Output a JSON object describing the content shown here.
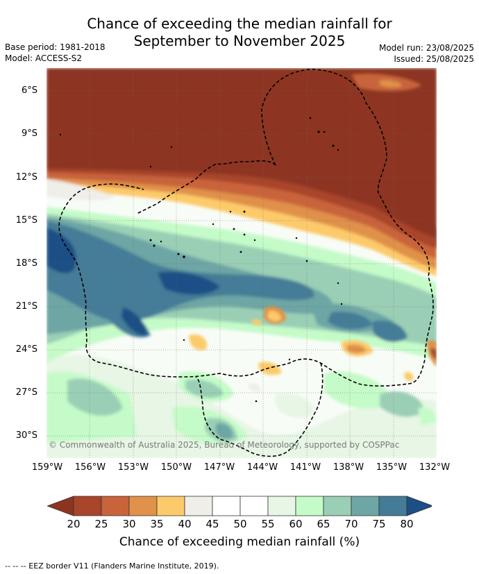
{
  "title": {
    "line1": "Chance of exceeding the median rainfall for",
    "line2": "September to November 2025"
  },
  "meta": {
    "base_period": "Base period: 1981-2018",
    "model": "Model: ACCESS-S2",
    "model_run": "Model run: 23/08/2025",
    "issued": "Issued: 25/08/2025"
  },
  "map": {
    "lat_labels": [
      "6°S",
      "9°S",
      "12°S",
      "15°S",
      "18°S",
      "21°S",
      "24°S",
      "27°S",
      "30°S"
    ],
    "lon_labels": [
      "159°W",
      "156°W",
      "153°W",
      "150°W",
      "147°W",
      "144°W",
      "141°W",
      "138°W",
      "135°W",
      "132°W"
    ],
    "lat_range": [
      -31.5,
      -4.5
    ],
    "lon_range": [
      -159,
      -132
    ],
    "copyright": "© Commonwealth of Australia 2025, Bureau of Meteorology, supported by COSPPac"
  },
  "colorbar": {
    "ticks": [
      "20",
      "25",
      "30",
      "35",
      "40",
      "45",
      "50",
      "55",
      "60",
      "65",
      "70",
      "75",
      "80"
    ],
    "colors": [
      "#a9452a",
      "#c9633a",
      "#e0914a",
      "#fdca6b",
      "#efeee9",
      "#ffffff",
      "#ffffff",
      "#e7f6e5",
      "#c5fbc8",
      "#9acfb6",
      "#6da6a4",
      "#447c97"
    ],
    "under_color": "#8d3420",
    "over_color": "#1b4f86",
    "label": "Chance of exceeding median rainfall (%)"
  },
  "footnote": "--  --  -- EEZ border V11 (Flanders Marine Institute, 2019)."
}
